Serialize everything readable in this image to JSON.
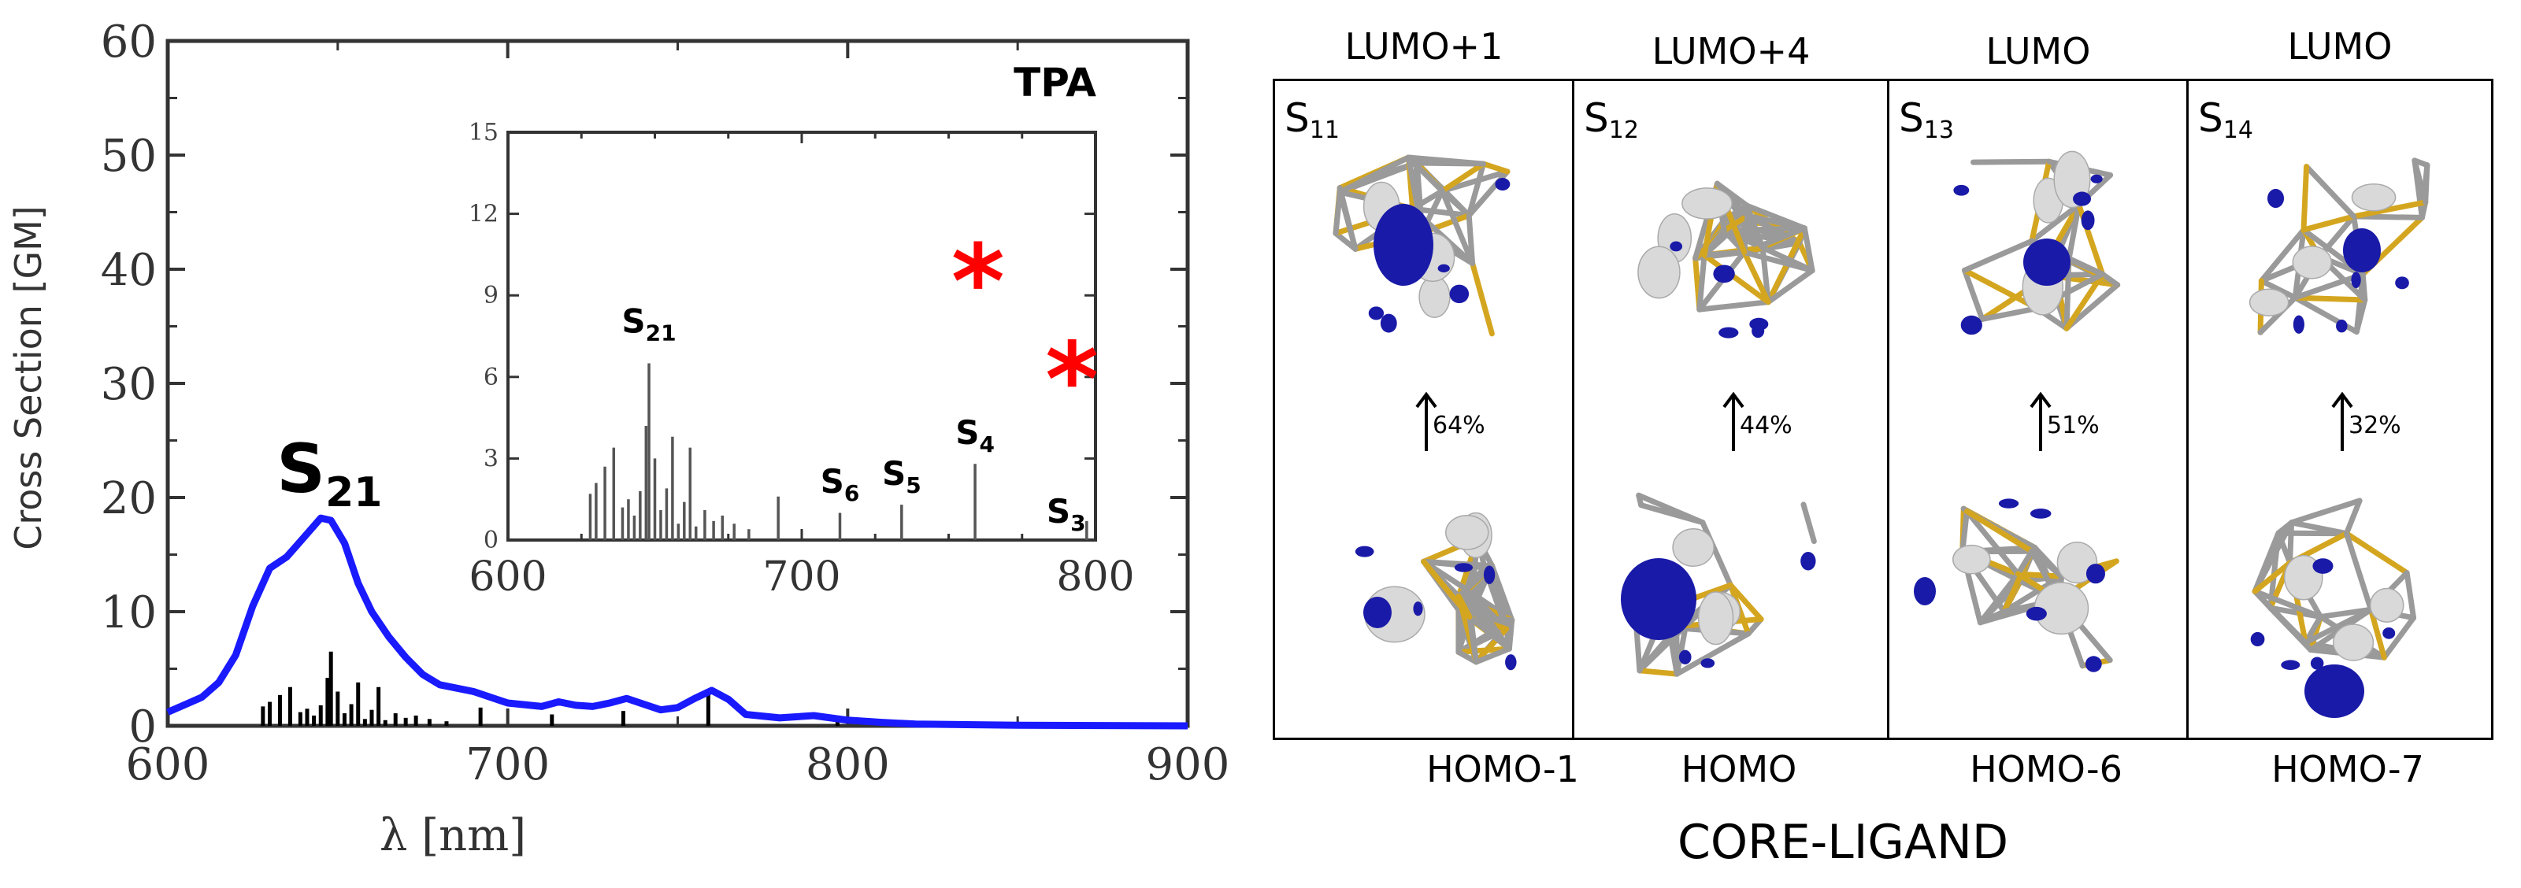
{
  "chart_data": [
    {
      "type": "line",
      "title": "",
      "panel_label": "TPA",
      "xlabel": "λ [nm]",
      "ylabel": "Cross Section [GM]",
      "xlim": [
        600,
        900
      ],
      "ylim": [
        0,
        60
      ],
      "xticks": [
        "600",
        "700",
        "800",
        "900"
      ],
      "yticks": [
        "0",
        "10",
        "20",
        "30",
        "40",
        "50",
        "60"
      ],
      "peak_label": {
        "main": "S",
        "sub": "21"
      },
      "series": [
        {
          "color": "#1a1aff",
          "x": [
            600,
            610,
            615,
            620,
            625,
            630,
            635,
            640,
            645,
            648,
            652,
            656,
            660,
            665,
            670,
            675,
            680,
            690,
            700,
            710,
            715,
            720,
            725,
            730,
            735,
            740,
            745,
            750,
            755,
            760,
            765,
            770,
            780,
            790,
            800,
            810,
            820,
            850,
            900
          ],
          "y": [
            1.2,
            2.5,
            3.8,
            6.2,
            10.5,
            13.8,
            14.8,
            16.5,
            18.2,
            18.0,
            16.0,
            12.5,
            10.0,
            7.8,
            6.0,
            4.5,
            3.6,
            3.0,
            2.0,
            1.7,
            2.1,
            1.8,
            1.7,
            2.0,
            2.4,
            1.9,
            1.4,
            1.6,
            2.4,
            3.1,
            2.3,
            1.0,
            0.7,
            0.9,
            0.5,
            0.3,
            0.15,
            0.05,
            0.0
          ]
        }
      ],
      "sticks": {
        "color": "#000000",
        "x": [
          628,
          630,
          633,
          636,
          639,
          641,
          643,
          645,
          647,
          648,
          650,
          652,
          654,
          656,
          658,
          660,
          662,
          664,
          667,
          670,
          673,
          677,
          682,
          692,
          713,
          734,
          759,
          797
        ],
        "y": [
          1.7,
          2.1,
          2.7,
          3.4,
          1.2,
          1.5,
          0.9,
          1.8,
          4.2,
          6.5,
          3.0,
          1.1,
          1.9,
          3.8,
          0.6,
          1.4,
          3.4,
          0.5,
          1.1,
          0.7,
          0.9,
          0.6,
          0.4,
          1.6,
          1.0,
          1.3,
          2.8,
          0.7
        ]
      }
    },
    {
      "type": "bar",
      "title": "",
      "inset": true,
      "xlim": [
        600,
        800
      ],
      "ylim": [
        0,
        15
      ],
      "xticks": [
        "600",
        "700",
        "800"
      ],
      "yticks": [
        "0",
        "3",
        "6",
        "9",
        "12",
        "15"
      ],
      "x": [
        628,
        630,
        633,
        636,
        639,
        641,
        643,
        645,
        647,
        648,
        650,
        652,
        654,
        656,
        658,
        660,
        662,
        664,
        667,
        670,
        673,
        677,
        682,
        692,
        713,
        734,
        759,
        797
      ],
      "values": [
        1.7,
        2.1,
        2.7,
        3.4,
        1.2,
        1.5,
        0.9,
        1.8,
        4.2,
        6.5,
        3.0,
        1.1,
        1.9,
        3.8,
        0.6,
        1.4,
        3.4,
        0.5,
        1.1,
        0.7,
        0.9,
        0.6,
        0.4,
        1.6,
        1.0,
        1.3,
        2.8,
        0.7
      ],
      "state_labels": [
        {
          "main": "S",
          "sub": "21",
          "x": 648,
          "y": 6.5
        },
        {
          "main": "S",
          "sub": "6",
          "x": 713,
          "y": 1.0
        },
        {
          "main": "S",
          "sub": "5",
          "x": 734,
          "y": 1.3
        },
        {
          "main": "S",
          "sub": "4",
          "x": 759,
          "y": 2.8
        },
        {
          "main": "S",
          "sub": "3",
          "x": 790,
          "y": 0.7
        }
      ],
      "markers": [
        {
          "symbol": "*",
          "color": "#ff0000",
          "x": 760,
          "y": 9.7
        },
        {
          "symbol": "*",
          "color": "#ff0000",
          "x": 792,
          "y": 6.1
        }
      ]
    }
  ],
  "orbitals": {
    "footer": "CORE-LIGAND",
    "panels": [
      {
        "state": "S",
        "state_sub": "11",
        "top": "LUMO+1",
        "bottom": "HOMO-1",
        "percent": "64%"
      },
      {
        "state": "S",
        "state_sub": "12",
        "top": "LUMO+4",
        "bottom": "HOMO",
        "percent": "44%"
      },
      {
        "state": "S",
        "state_sub": "13",
        "top": "LUMO",
        "bottom": "HOMO-6",
        "percent": "51%"
      },
      {
        "state": "S",
        "state_sub": "14",
        "top": "LUMO",
        "bottom": "HOMO-7",
        "percent": "32%"
      }
    ]
  },
  "colors": {
    "axis": "#333333",
    "curve": "#1a1aff",
    "sticks": "#000000",
    "star": "#ff0000",
    "lobe_blue": "#1a1aa8",
    "lobe_gray": "#d9d9d9",
    "bond_gold": "#d4a620",
    "bond_gray": "#9a9a9a"
  },
  "icons": [
    "up-arrow-icon",
    "orbital-isosurface-image"
  ]
}
